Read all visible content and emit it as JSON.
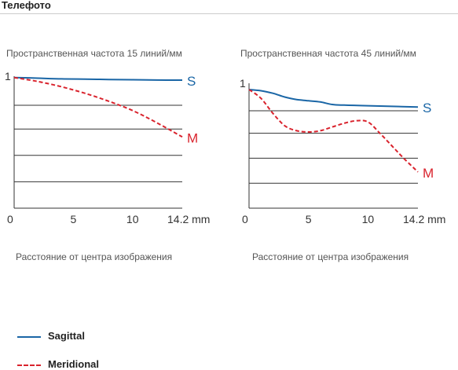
{
  "page_title": "Телефото",
  "legend": [
    {
      "label": "Sagittal",
      "color": "#1a66a6",
      "style": "solid"
    },
    {
      "label": "Meridional",
      "color": "#d9232d",
      "style": "dashed"
    }
  ],
  "chart_data": [
    {
      "type": "line",
      "title": "Пространственная частота 15 линий/мм",
      "xlabel": "Расстояние от центра изображения",
      "x_unit": "mm",
      "xlim": [
        0,
        14.2
      ],
      "ylim": [
        0,
        1
      ],
      "xticks": [
        0,
        5,
        10,
        14.2
      ],
      "xtick_labels": [
        "0",
        "5",
        "10",
        "14.2 mm"
      ],
      "yticks": [
        1
      ],
      "ytick_labels": [
        "1"
      ],
      "grid": true,
      "series": [
        {
          "name": "S",
          "color": "#1a66a6",
          "style": "solid",
          "x": [
            0,
            2,
            4,
            6,
            8,
            10,
            12,
            14.2
          ],
          "y": [
            0.99,
            0.985,
            0.98,
            0.978,
            0.975,
            0.973,
            0.971,
            0.97
          ]
        },
        {
          "name": "M",
          "color": "#d9232d",
          "style": "dashed",
          "x": [
            0,
            2,
            4,
            6,
            8,
            10,
            12,
            14.2
          ],
          "y": [
            0.99,
            0.96,
            0.92,
            0.87,
            0.81,
            0.74,
            0.65,
            0.54
          ]
        }
      ]
    },
    {
      "type": "line",
      "title": "Пространственная частота 45 линий/мм",
      "xlabel": "Расстояние от центра изображения",
      "x_unit": "mm",
      "xlim": [
        0,
        14.2
      ],
      "ylim": [
        0,
        1
      ],
      "xticks": [
        0,
        5,
        10,
        14.2
      ],
      "xtick_labels": [
        "0",
        "5",
        "10",
        "14.2 mm"
      ],
      "yticks": [
        1
      ],
      "ytick_labels": [
        "1"
      ],
      "grid": true,
      "series": [
        {
          "name": "S",
          "color": "#1a66a6",
          "style": "solid",
          "x": [
            0,
            1,
            2,
            3,
            4,
            5,
            6,
            7,
            8,
            10,
            12,
            14.2
          ],
          "y": [
            0.95,
            0.94,
            0.92,
            0.89,
            0.87,
            0.86,
            0.85,
            0.83,
            0.825,
            0.82,
            0.815,
            0.81
          ]
        },
        {
          "name": "M",
          "color": "#d9232d",
          "style": "dashed",
          "x": [
            0,
            1,
            2,
            3,
            4,
            5,
            6,
            7,
            8,
            9,
            10,
            11,
            12,
            13,
            14.2
          ],
          "y": [
            0.95,
            0.88,
            0.76,
            0.66,
            0.62,
            0.61,
            0.62,
            0.65,
            0.68,
            0.7,
            0.69,
            0.6,
            0.5,
            0.4,
            0.29
          ]
        }
      ]
    }
  ]
}
